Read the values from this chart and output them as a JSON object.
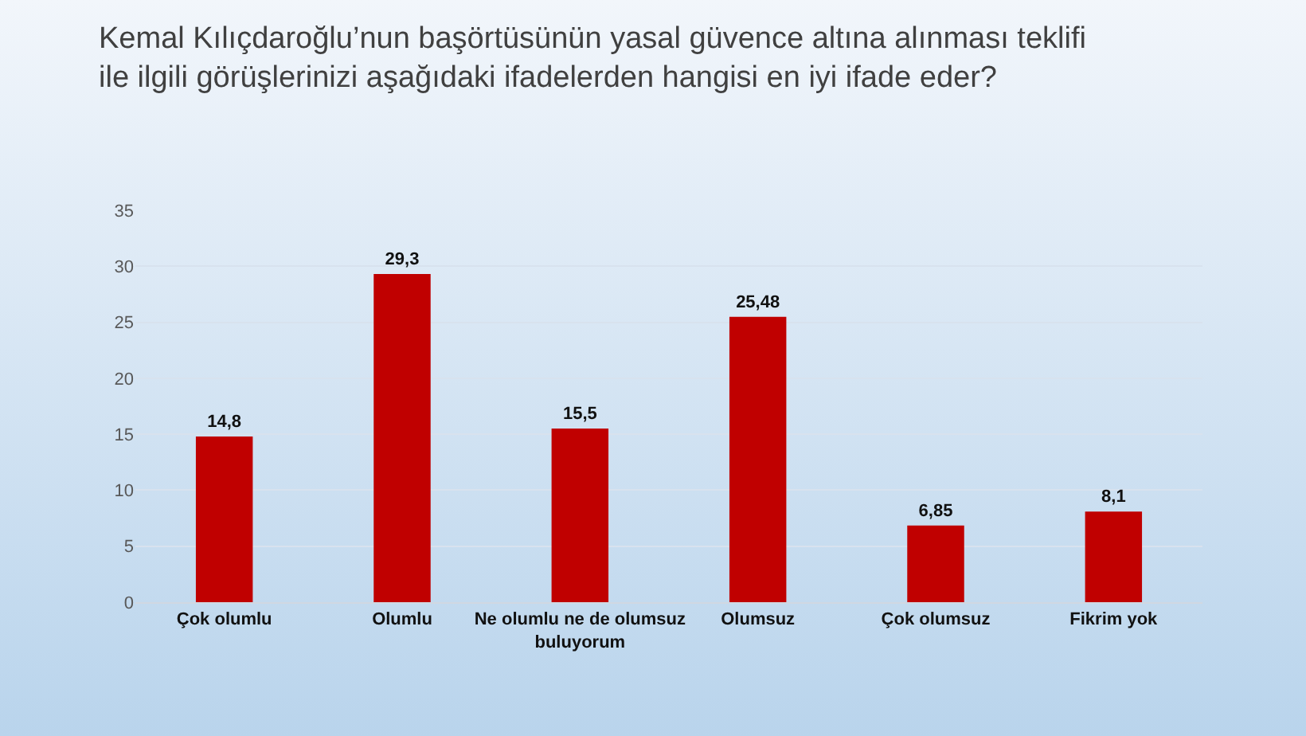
{
  "chart_data": {
    "type": "bar",
    "title": "Kemal Kılıçdaroğlu’nun başörtüsünün yasal güvence altına alınması teklifi ile ilgili görüşlerinizi aşağıdaki ifadelerden hangisi en iyi ifade eder?",
    "categories": [
      "Çok olumlu",
      "Olumlu",
      "Ne olumlu ne de olumsuz buluyorum",
      "Olumsuz",
      "Çok olumsuz",
      "Fikrim yok"
    ],
    "values": [
      14.8,
      29.3,
      15.5,
      25.48,
      6.85,
      8.1
    ],
    "value_labels": [
      "14,8",
      "29,3",
      "15,5",
      "25,48",
      "6,85",
      "8,1"
    ],
    "color": "#c00000",
    "ylim": [
      0,
      35
    ],
    "yticks": [
      0,
      5,
      10,
      15,
      20,
      25,
      30,
      35
    ],
    "grid": "y"
  }
}
